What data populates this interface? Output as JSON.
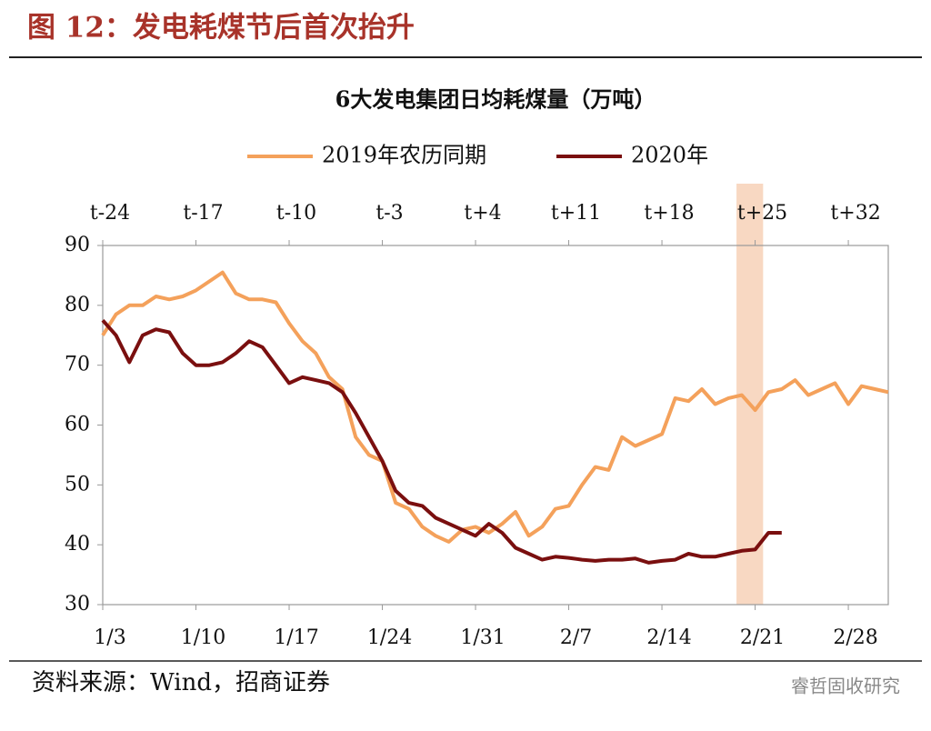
{
  "header": {
    "title": "图 12：发电耗煤节后首次抬升"
  },
  "chart_data": {
    "type": "line",
    "title": "6大发电集团日均耗煤量（万吨）",
    "x": [
      "1/3",
      "1/4",
      "1/5",
      "1/6",
      "1/7",
      "1/8",
      "1/9",
      "1/10",
      "1/11",
      "1/12",
      "1/13",
      "1/14",
      "1/15",
      "1/16",
      "1/17",
      "1/18",
      "1/19",
      "1/20",
      "1/21",
      "1/22",
      "1/23",
      "1/24",
      "1/25",
      "1/26",
      "1/27",
      "1/28",
      "1/29",
      "1/30",
      "1/31",
      "2/1",
      "2/2",
      "2/3",
      "2/4",
      "2/5",
      "2/6",
      "2/7",
      "2/8",
      "2/9",
      "2/10",
      "2/11",
      "2/12",
      "2/13",
      "2/14",
      "2/15",
      "2/16",
      "2/17",
      "2/18",
      "2/19",
      "2/20",
      "2/21",
      "2/22",
      "2/23",
      "2/24",
      "2/25",
      "2/26",
      "2/27",
      "2/28",
      "2/29",
      "3/1",
      "3/2"
    ],
    "series": [
      {
        "name": "2019年农历同期",
        "color": "#f4a15b",
        "values": [
          75,
          78.5,
          80,
          80,
          81.5,
          81,
          81.5,
          82.5,
          84,
          85.5,
          82,
          81,
          81,
          80.5,
          77,
          74,
          72,
          68,
          66,
          58,
          55,
          54,
          47,
          46,
          43,
          41.5,
          40.5,
          42.5,
          43,
          42,
          43.5,
          45.5,
          41.5,
          43,
          46,
          46.5,
          50,
          53,
          52.5,
          58,
          56.5,
          57.5,
          58.5,
          64.5,
          64,
          66,
          63.5,
          64.5,
          65,
          62.5,
          65.5,
          66,
          67.5,
          65,
          66,
          67,
          63.5,
          66.5,
          66,
          65.5
        ]
      },
      {
        "name": "2020年",
        "color": "#7a0f0f",
        "values": [
          77.5,
          75,
          70.5,
          75,
          76,
          75.5,
          72,
          70,
          70,
          70.5,
          72,
          74,
          73,
          70,
          67,
          68,
          67.5,
          67,
          65.5,
          62,
          58,
          54,
          49,
          47,
          46.5,
          44.5,
          43.5,
          42.5,
          41.5,
          43.5,
          42,
          39.5,
          38.5,
          37.5,
          38,
          37.8,
          37.5,
          37.3,
          37.5,
          37.5,
          37.7,
          37,
          37.3,
          37.5,
          38.5,
          38,
          38,
          38.5,
          39,
          39.2,
          42,
          42,
          null,
          null,
          null,
          null,
          null,
          null,
          null,
          null
        ]
      }
    ],
    "xtick_labels": [
      "1/3",
      "1/10",
      "1/17",
      "1/24",
      "1/31",
      "2/7",
      "2/14",
      "2/21",
      "2/28"
    ],
    "top_xtick_labels": [
      "t-24",
      "t-17",
      "t-10",
      "t-3",
      "t+4",
      "t+11",
      "t+18",
      "t+25",
      "t+32"
    ],
    "highlight": [
      "2/20",
      "2/22"
    ],
    "highlight_color": "#f8d8c2",
    "ylim": [
      30,
      90
    ],
    "yticks": [
      30,
      40,
      50,
      60,
      70,
      80,
      90
    ],
    "grid": false,
    "legend": "top"
  },
  "footer": {
    "source": "资料来源：Wind，招商证券",
    "watermark": "睿哲固收研究"
  }
}
